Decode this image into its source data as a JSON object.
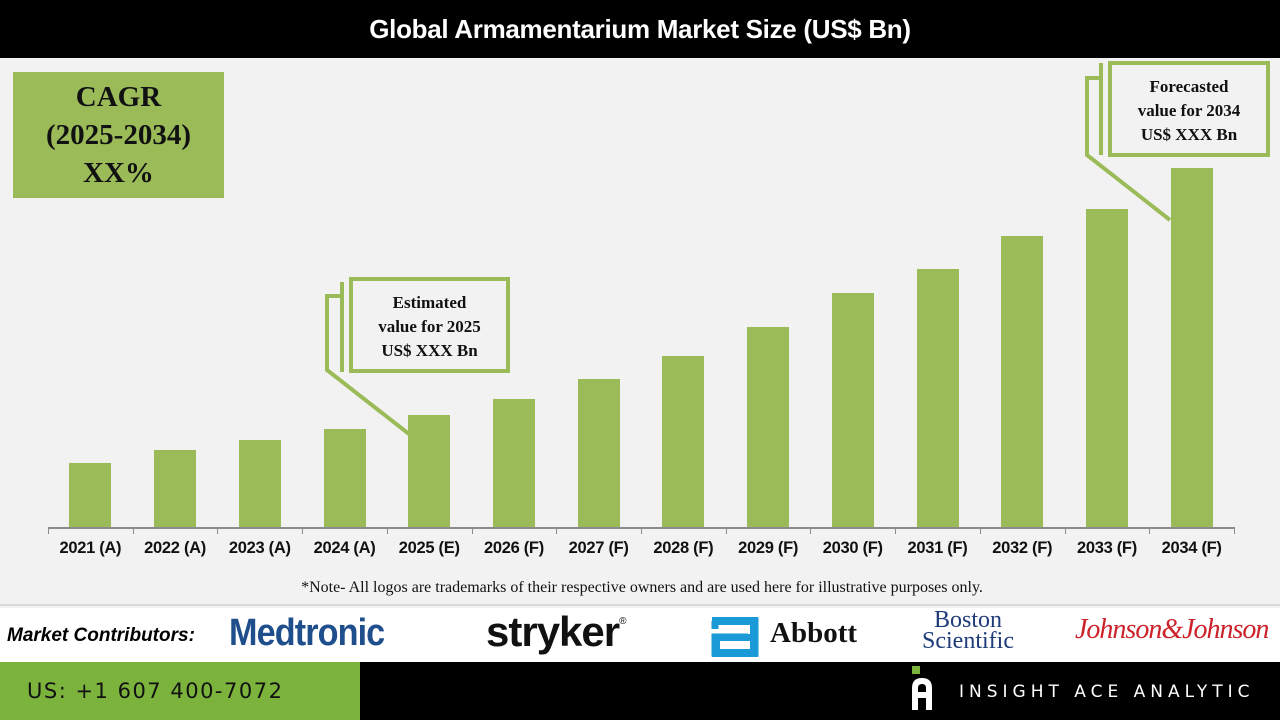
{
  "header": {
    "title": "Global Armamentarium Market Size (US$ Bn)"
  },
  "cagr": {
    "line1": "CAGR",
    "line2": "(2025-2034)",
    "line3": "XX%"
  },
  "callouts": {
    "estimated": {
      "line1": "Estimated",
      "line2": "value for 2025",
      "line3": "US$ XXX Bn"
    },
    "forecasted": {
      "line1": "Forecasted",
      "line2": "value for 2034",
      "line3": "US$ XXX Bn"
    }
  },
  "note": "*Note- All logos are trademarks of their respective owners and are used here for illustrative purposes only.",
  "contributors": {
    "label": "Market Contributors:",
    "logos": [
      "Medtronic",
      "stryker",
      "Abbott",
      "Boston",
      "Scientific",
      "Johnson&Johnson"
    ],
    "registered": "®"
  },
  "footer": {
    "phone": "US: +1 607 400-7072",
    "brand": "INSIGHT ACE ANALYTIC"
  },
  "colors": {
    "bar": "#9bbb59",
    "title_bg": "#000000",
    "footer_green": "#7bb33d",
    "medtronic": "#1f4e8c",
    "abbott": "#1a9ad6",
    "jnj": "#cc2229"
  },
  "chart_data": {
    "type": "bar",
    "title": "Global Armamentarium Market Size (US$ Bn)",
    "xlabel": "",
    "ylabel": "US$ Bn",
    "grid": false,
    "legend": null,
    "categories": [
      "2021 (A)",
      "2022 (A)",
      "2023 (A)",
      "2024 (A)",
      "2025 (E)",
      "2026 (F)",
      "2027 (F)",
      "2028 (F)",
      "2029 (F)",
      "2030 (F)",
      "2031 (F)",
      "2032 (F)",
      "2033 (F)",
      "2034 (F)"
    ],
    "values": [
      64,
      77,
      87,
      98,
      112,
      128,
      148,
      171,
      200,
      234,
      258,
      291,
      318,
      359
    ],
    "values_note": "Relative bar heights (pixels); no y-axis scale is shown",
    "annotations": [
      "CAGR (2025-2034) XX%",
      "Estimated value for 2025 US$ XXX Bn",
      "Forecasted value for 2034 US$ XXX Bn"
    ]
  }
}
